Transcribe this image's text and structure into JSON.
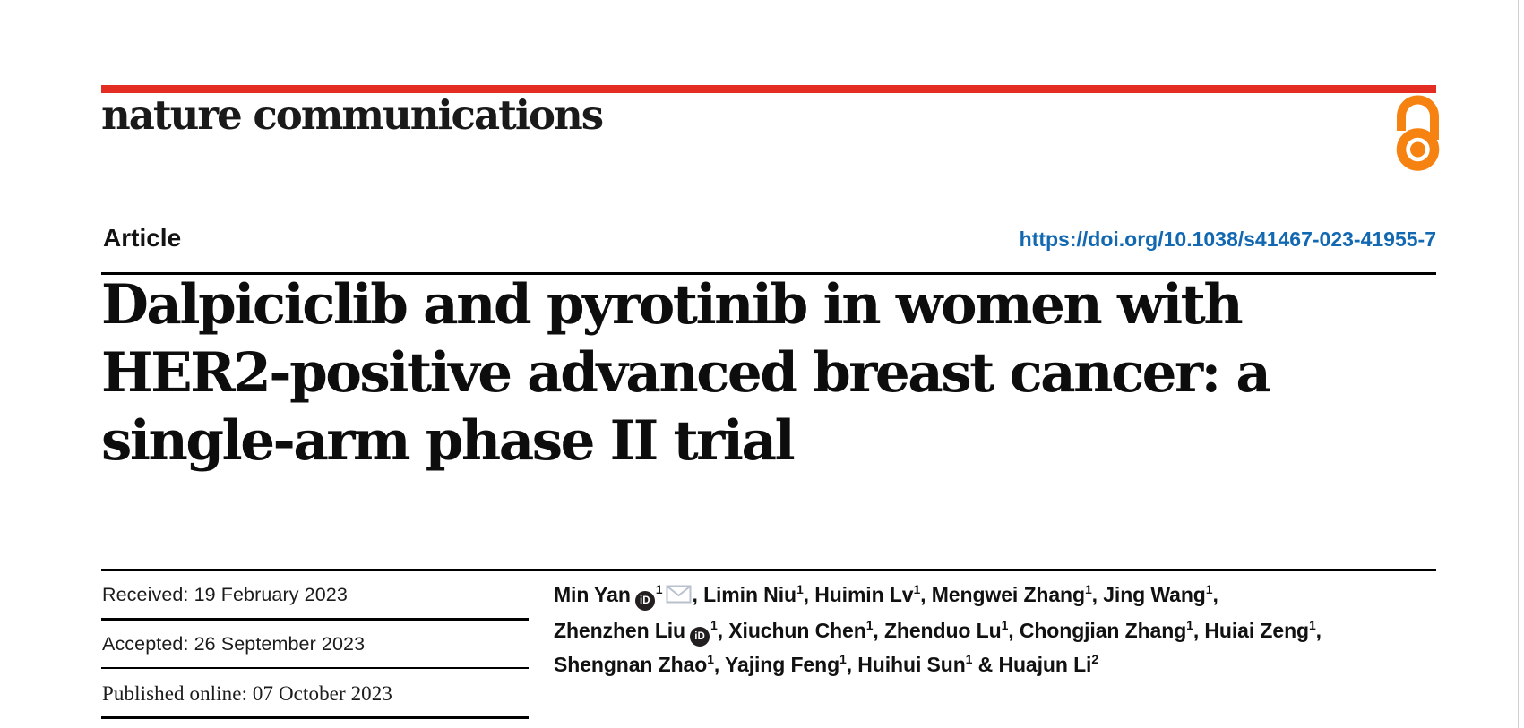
{
  "journal": {
    "logo_text": "nature communications"
  },
  "header": {
    "article_label": "Article",
    "doi_link": "https://doi.org/10.1038/s41467-023-41955-7"
  },
  "title": {
    "lines": [
      "Dalpiciclib and pyrotinib in women with",
      "HER2-positive advanced breast cancer: a",
      "single-arm phase II trial"
    ]
  },
  "history": {
    "received": "Received: 19 February 2023",
    "accepted": "Accepted: 26 September 2023",
    "published": "Published online: 07 October 2023"
  },
  "icons": {
    "orcid_label": "iD",
    "open_access": "open-access-padlock",
    "email": "envelope"
  },
  "colors": {
    "accent_red": "#e32d22",
    "link_blue": "#1268b1",
    "open_access_orange": "#f68212",
    "orcid_black": "#231f20",
    "envelope_gray": "#b9c0ce"
  },
  "authors": {
    "lines": [
      [
        {
          "t": "Min Yan"
        },
        {
          "icon": "orcid"
        },
        {
          "sup": "1"
        },
        {
          "icon": "mail"
        },
        {
          "t": ", Limin Niu"
        },
        {
          "sup": "1"
        },
        {
          "t": ", Huimin Lv"
        },
        {
          "sup": "1"
        },
        {
          "t": ", Mengwei Zhang"
        },
        {
          "sup": "1"
        },
        {
          "t": ", Jing Wang"
        },
        {
          "sup": "1"
        },
        {
          "t": ","
        }
      ],
      [
        {
          "t": "Zhenzhen Liu"
        },
        {
          "icon": "orcid"
        },
        {
          "sup": "1"
        },
        {
          "t": ", Xiuchun Chen"
        },
        {
          "sup": "1"
        },
        {
          "t": ", Zhenduo Lu"
        },
        {
          "sup": "1"
        },
        {
          "t": ", Chongjian Zhang"
        },
        {
          "sup": "1"
        },
        {
          "t": ", Huiai Zeng"
        },
        {
          "sup": "1"
        },
        {
          "t": ","
        }
      ],
      [
        {
          "t": "Shengnan Zhao"
        },
        {
          "sup": "1"
        },
        {
          "t": ", Yajing Feng"
        },
        {
          "sup": "1"
        },
        {
          "t": ", Huihui Sun"
        },
        {
          "sup": "1"
        },
        {
          "t": " & Huajun Li"
        },
        {
          "sup": "2"
        }
      ]
    ]
  }
}
